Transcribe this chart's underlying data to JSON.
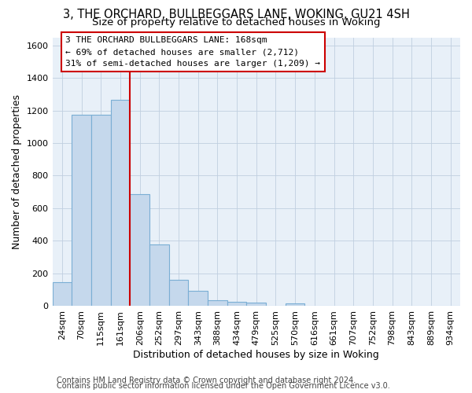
{
  "title": "3, THE ORCHARD, BULLBEGGARS LANE, WOKING, GU21 4SH",
  "subtitle": "Size of property relative to detached houses in Woking",
  "xlabel": "Distribution of detached houses by size in Woking",
  "ylabel": "Number of detached properties",
  "categories": [
    "24sqm",
    "70sqm",
    "115sqm",
    "161sqm",
    "206sqm",
    "252sqm",
    "297sqm",
    "343sqm",
    "388sqm",
    "434sqm",
    "479sqm",
    "525sqm",
    "570sqm",
    "616sqm",
    "661sqm",
    "707sqm",
    "752sqm",
    "798sqm",
    "843sqm",
    "889sqm",
    "934sqm"
  ],
  "values": [
    145,
    1175,
    1175,
    1265,
    685,
    375,
    160,
    90,
    35,
    25,
    20,
    0,
    15,
    0,
    0,
    0,
    0,
    0,
    0,
    0,
    0
  ],
  "bar_color": "#c5d8ec",
  "bar_edge_color": "#7aaed4",
  "property_line_x": 3.5,
  "annotation_text": "3 THE ORCHARD BULLBEGGARS LANE: 168sqm\n← 69% of detached houses are smaller (2,712)\n31% of semi-detached houses are larger (1,209) →",
  "annotation_box_color": "#ffffff",
  "annotation_box_edgecolor": "#cc0000",
  "line_color": "#cc0000",
  "footer1": "Contains HM Land Registry data © Crown copyright and database right 2024.",
  "footer2": "Contains public sector information licensed under the Open Government Licence v3.0.",
  "ylim": [
    0,
    1650
  ],
  "yticks": [
    0,
    200,
    400,
    600,
    800,
    1000,
    1200,
    1400,
    1600
  ],
  "grid_color": "#c0cfe0",
  "bg_color": "#e8f0f8",
  "title_fontsize": 10.5,
  "subtitle_fontsize": 9.5,
  "axis_label_fontsize": 9,
  "tick_fontsize": 8,
  "footer_fontsize": 7,
  "annotation_fontsize": 8
}
